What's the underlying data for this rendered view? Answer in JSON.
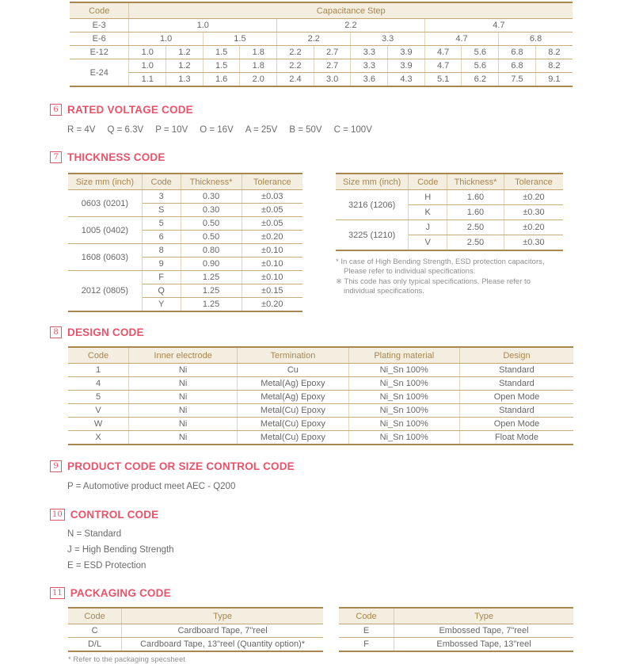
{
  "accent_colors": {
    "heading_pink": "#e8536a",
    "table_border_tan": "#a98850",
    "header_bg": "#f3eee0",
    "header_text_tan": "#a8874f",
    "body_text": "#666666"
  },
  "capacitance_table": {
    "widths": [
      "11.8%",
      "7.35%",
      "7.35%",
      "7.35%",
      "7.35%",
      "7.35%",
      "7.35%",
      "7.35%",
      "7.35%",
      "7.35%",
      "7.35%",
      "7.35%",
      "7.35%"
    ],
    "header": [
      {
        "t": "Code"
      },
      {
        "t": "Capacitance Step",
        "cs": 12
      }
    ],
    "rows": [
      [
        {
          "t": "E-3"
        },
        {
          "t": "1.0",
          "cs": 4
        },
        {
          "t": "2.2",
          "cs": 4
        },
        {
          "t": "4.7",
          "cs": 4
        }
      ],
      [
        {
          "t": "E-6"
        },
        {
          "t": "1.0",
          "cs": 2
        },
        {
          "t": "1.5",
          "cs": 2
        },
        {
          "t": "2.2",
          "cs": 2
        },
        {
          "t": "3.3",
          "cs": 2
        },
        {
          "t": "4.7",
          "cs": 2
        },
        {
          "t": "6.8",
          "cs": 2
        }
      ],
      [
        {
          "t": "E-12"
        },
        {
          "t": "1.0"
        },
        {
          "t": "1.2"
        },
        {
          "t": "1.5"
        },
        {
          "t": "1.8"
        },
        {
          "t": "2.2"
        },
        {
          "t": "2.7"
        },
        {
          "t": "3.3"
        },
        {
          "t": "3.9"
        },
        {
          "t": "4.7"
        },
        {
          "t": "5.6"
        },
        {
          "t": "6.8"
        },
        {
          "t": "8.2"
        }
      ],
      [
        {
          "t": "E-24",
          "rs": 2
        },
        {
          "t": "1.0"
        },
        {
          "t": "1.2"
        },
        {
          "t": "1.5"
        },
        {
          "t": "1.8"
        },
        {
          "t": "2.2"
        },
        {
          "t": "2.7"
        },
        {
          "t": "3.3"
        },
        {
          "t": "3.9"
        },
        {
          "t": "4.7"
        },
        {
          "t": "5.6"
        },
        {
          "t": "6.8"
        },
        {
          "t": "8.2"
        }
      ],
      [
        {
          "t": "1.1"
        },
        {
          "t": "1.3"
        },
        {
          "t": "1.6"
        },
        {
          "t": "2.0"
        },
        {
          "t": "2.4"
        },
        {
          "t": "3.0"
        },
        {
          "t": "3.6"
        },
        {
          "t": "4.3"
        },
        {
          "t": "5.1"
        },
        {
          "t": "6.2"
        },
        {
          "t": "7.5"
        },
        {
          "t": "9.1"
        }
      ]
    ]
  },
  "sections": {
    "rated_voltage": {
      "number": "6",
      "title": "RATED VOLTAGE CODE",
      "items": [
        "R = 4V",
        "Q = 6.3V",
        "P = 10V",
        "O = 16V",
        "A = 25V",
        "B = 50V",
        "C = 100V"
      ]
    },
    "thickness": {
      "number": "7",
      "title": "THICKNESS CODE",
      "left_table": {
        "widths": [
          "31.5%",
          "16.5%",
          "26%",
          "26%"
        ],
        "header": [
          {
            "t": "Size mm (inch)"
          },
          {
            "t": "Code"
          },
          {
            "t": "Thickness*"
          },
          {
            "t": "Tolerance"
          }
        ],
        "rows": [
          [
            {
              "t": "0603 (0201)",
              "rs": 2
            },
            {
              "t": "3"
            },
            {
              "t": "0.30"
            },
            {
              "t": "±0.03"
            }
          ],
          [
            {
              "t": "S"
            },
            {
              "t": "0.30"
            },
            {
              "t": "±0.05"
            }
          ],
          [
            {
              "t": "1005 (0402)",
              "rs": 2
            },
            {
              "t": "5"
            },
            {
              "t": "0.50"
            },
            {
              "t": "±0.05"
            }
          ],
          [
            {
              "t": "6"
            },
            {
              "t": "0.50"
            },
            {
              "t": "±0.20"
            }
          ],
          [
            {
              "t": "1608 (0603)",
              "rs": 2
            },
            {
              "t": "8"
            },
            {
              "t": "0.80"
            },
            {
              "t": "±0.10"
            }
          ],
          [
            {
              "t": "9"
            },
            {
              "t": "0.90"
            },
            {
              "t": "±0.10"
            }
          ],
          [
            {
              "t": "2012 (0805)",
              "rs": 3
            },
            {
              "t": "F"
            },
            {
              "t": "1.25"
            },
            {
              "t": "±0.10"
            }
          ],
          [
            {
              "t": "Q"
            },
            {
              "t": "1.25"
            },
            {
              "t": "±0.15"
            }
          ],
          [
            {
              "t": "Y"
            },
            {
              "t": "1.25"
            },
            {
              "t": "±0.20"
            }
          ]
        ]
      },
      "right_table": {
        "widths": [
          "32%",
          "17%",
          "25%",
          "26%"
        ],
        "header": [
          {
            "t": "Size mm (inch)"
          },
          {
            "t": "Code"
          },
          {
            "t": "Thickness*"
          },
          {
            "t": "Tolerance"
          }
        ],
        "rows": [
          [
            {
              "t": "3216 (1206)",
              "rs": 2
            },
            {
              "t": "H"
            },
            {
              "t": "1.60"
            },
            {
              "t": "±0.20"
            }
          ],
          [
            {
              "t": "K"
            },
            {
              "t": "1.60"
            },
            {
              "t": "±0.30"
            }
          ],
          [
            {
              "t": "3225 (1210)",
              "rs": 2
            },
            {
              "t": "J"
            },
            {
              "t": "2.50"
            },
            {
              "t": "±0.20"
            }
          ],
          [
            {
              "t": "V"
            },
            {
              "t": "2.50"
            },
            {
              "t": "±0.30"
            }
          ]
        ]
      },
      "notes": [
        "* In case of High Bending Strength, ESD protection capacitors, Please refer to individual specifications.",
        "※ This code has only typical specifications. Please refer to individual specifications."
      ]
    },
    "design": {
      "number": "8",
      "title": "DESIGN CODE",
      "table": {
        "widths": [
          "12%",
          "21.5%",
          "22%",
          "22%",
          "22.5%"
        ],
        "header": [
          {
            "t": "Code"
          },
          {
            "t": "Inner electrode"
          },
          {
            "t": "Termination"
          },
          {
            "t": "Plating material"
          },
          {
            "t": "Design"
          }
        ],
        "rows": [
          [
            {
              "t": "1"
            },
            {
              "t": "Ni"
            },
            {
              "t": "Cu"
            },
            {
              "t": "Ni_Sn 100%"
            },
            {
              "t": "Standard"
            }
          ],
          [
            {
              "t": "4"
            },
            {
              "t": "Ni"
            },
            {
              "t": "Metal(Ag) Epoxy"
            },
            {
              "t": "Ni_Sn 100%"
            },
            {
              "t": "Standard"
            }
          ],
          [
            {
              "t": "5"
            },
            {
              "t": "Ni"
            },
            {
              "t": "Metal(Ag) Epoxy"
            },
            {
              "t": "Ni_Sn 100%"
            },
            {
              "t": "Open Mode"
            }
          ],
          [
            {
              "t": "V"
            },
            {
              "t": "Ni"
            },
            {
              "t": "Metal(Cu) Epoxy"
            },
            {
              "t": "Ni_Sn 100%"
            },
            {
              "t": "Standard"
            }
          ],
          [
            {
              "t": "W"
            },
            {
              "t": "Ni"
            },
            {
              "t": "Metal(Cu) Epoxy"
            },
            {
              "t": "Ni_Sn 100%"
            },
            {
              "t": "Open Mode"
            }
          ],
          [
            {
              "t": "X"
            },
            {
              "t": "Ni"
            },
            {
              "t": "Metal(Cu) Epoxy"
            },
            {
              "t": "Ni_Sn 100%"
            },
            {
              "t": "Float Mode"
            }
          ]
        ]
      }
    },
    "product": {
      "number": "9",
      "title": "PRODUCT CODE OR SIZE CONTROL CODE",
      "text": "P = Automotive product meet AEC - Q200"
    },
    "control": {
      "number": "10",
      "title": "CONTROL CODE",
      "lines": [
        "N = Standard",
        "J = High Bending Strength",
        "E = ESD Protection"
      ]
    },
    "packaging": {
      "number": "11",
      "title": "PACKAGING CODE",
      "left_table": {
        "widths": [
          "21%",
          "79%"
        ],
        "header": [
          {
            "t": "Code"
          },
          {
            "t": "Type"
          }
        ],
        "rows": [
          [
            {
              "t": "C"
            },
            {
              "t": "Cardboard Tape, 7\"reel"
            }
          ],
          [
            {
              "t": "D/L"
            },
            {
              "t": "Cardboard Tape, 13\"reel (Quantity option)*"
            }
          ]
        ]
      },
      "right_table": {
        "widths": [
          "23.5%",
          "76.5%"
        ],
        "header": [
          {
            "t": "Code"
          },
          {
            "t": "Type"
          }
        ],
        "rows": [
          [
            {
              "t": "E"
            },
            {
              "t": "Embossed Tape, 7\"reel"
            }
          ],
          [
            {
              "t": "F"
            },
            {
              "t": "Embossed Tape, 13\"reel"
            }
          ]
        ]
      },
      "footnote": "* Refer to the packaging specsheet"
    }
  }
}
